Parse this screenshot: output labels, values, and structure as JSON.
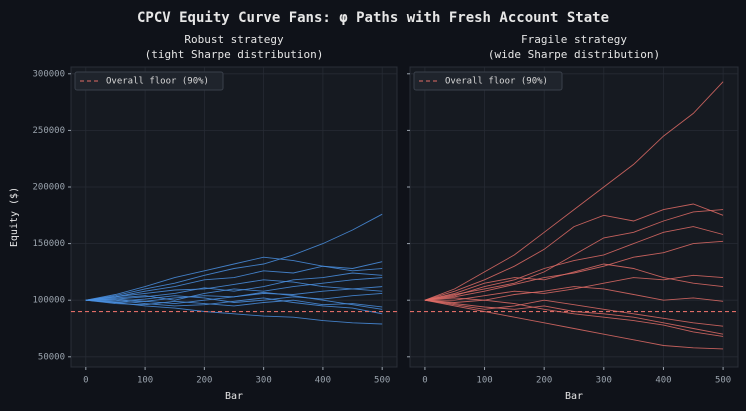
{
  "title": "CPCV Equity Curve Fans: φ Paths with Fresh Account State",
  "chart_data": [
    {
      "type": "line",
      "title": "Robust strategy",
      "subtitle": "(tight Sharpe distribution)",
      "xlabel": "Bar",
      "ylabel": "Equity ($)",
      "xlim": [
        -25,
        525
      ],
      "xticks": [
        0,
        100,
        200,
        300,
        400,
        500
      ],
      "ylim": [
        41000,
        306000
      ],
      "yticks": [
        50000,
        100000,
        150000,
        200000,
        250000,
        300000
      ],
      "grid": true,
      "legend": "upper left",
      "floor": {
        "name": "Overall floor (90%)",
        "value": 90000,
        "color": "#e06c66"
      },
      "x": [
        0,
        50,
        100,
        150,
        200,
        250,
        300,
        350,
        400,
        450,
        500
      ],
      "series": [
        {
          "color": "#4a90e2",
          "values": [
            100000,
            104000,
            110000,
            115000,
            122000,
            128000,
            132000,
            140000,
            150000,
            162000,
            176000
          ]
        },
        {
          "color": "#4a90e2",
          "values": [
            100000,
            98000,
            95000,
            93000,
            90000,
            88000,
            86000,
            85000,
            82000,
            80000,
            79000
          ]
        },
        {
          "color": "#4a90e2",
          "values": [
            100000,
            103000,
            108000,
            112000,
            118000,
            120000,
            126000,
            124000,
            130000,
            128000,
            134000
          ]
        },
        {
          "color": "#4a90e2",
          "values": [
            100000,
            101000,
            99000,
            102000,
            104000,
            103000,
            106000,
            105000,
            108000,
            110000,
            112000
          ]
        },
        {
          "color": "#4a90e2",
          "values": [
            100000,
            97000,
            96000,
            99000,
            97000,
            95000,
            98000,
            100000,
            96000,
            97000,
            94000
          ]
        },
        {
          "color": "#4a90e2",
          "values": [
            100000,
            105000,
            112000,
            120000,
            126000,
            132000,
            138000,
            135000,
            130000,
            126000,
            128000
          ]
        },
        {
          "color": "#4a90e2",
          "values": [
            100000,
            102000,
            104000,
            100000,
            106000,
            110000,
            108000,
            112000,
            115000,
            118000,
            120000
          ]
        },
        {
          "color": "#4a90e2",
          "values": [
            100000,
            99000,
            101000,
            104000,
            102000,
            98000,
            100000,
            103000,
            101000,
            104000,
            106000
          ]
        },
        {
          "color": "#4a90e2",
          "values": [
            100000,
            103000,
            106000,
            109000,
            110000,
            114000,
            118000,
            116000,
            112000,
            110000,
            108000
          ]
        },
        {
          "color": "#4a90e2",
          "values": [
            100000,
            98000,
            99000,
            97000,
            100000,
            103000,
            107000,
            104000,
            100000,
            96000,
            92000
          ]
        },
        {
          "color": "#4a90e2",
          "values": [
            100000,
            101000,
            103000,
            106000,
            111000,
            108000,
            112000,
            118000,
            120000,
            124000,
            122000
          ]
        },
        {
          "color": "#4a90e2",
          "values": [
            100000,
            100000,
            97000,
            95000,
            96000,
            99000,
            102000,
            98000,
            95000,
            93000,
            88000
          ]
        }
      ]
    },
    {
      "type": "line",
      "title": "Fragile strategy",
      "subtitle": "(wide Sharpe distribution)",
      "xlabel": "Bar",
      "xlim": [
        -25,
        525
      ],
      "xticks": [
        0,
        100,
        200,
        300,
        400,
        500
      ],
      "ylim": [
        41000,
        306000
      ],
      "yticks": [
        50000,
        100000,
        150000,
        200000,
        250000,
        300000
      ],
      "grid": true,
      "legend": "upper left",
      "floor": {
        "name": "Overall floor (90%)",
        "value": 90000,
        "color": "#e06c66"
      },
      "x": [
        0,
        50,
        100,
        150,
        200,
        250,
        300,
        350,
        400,
        450,
        500
      ],
      "series": [
        {
          "color": "#e06c66",
          "values": [
            100000,
            110000,
            125000,
            140000,
            160000,
            180000,
            200000,
            220000,
            245000,
            265000,
            293000
          ]
        },
        {
          "color": "#e06c66",
          "values": [
            100000,
            108000,
            118000,
            130000,
            145000,
            165000,
            175000,
            170000,
            180000,
            185000,
            175000
          ]
        },
        {
          "color": "#e06c66",
          "values": [
            100000,
            95000,
            90000,
            85000,
            80000,
            75000,
            70000,
            65000,
            60000,
            58000,
            57000
          ]
        },
        {
          "color": "#e06c66",
          "values": [
            100000,
            104000,
            112000,
            118000,
            128000,
            135000,
            140000,
            150000,
            160000,
            165000,
            158000
          ]
        },
        {
          "color": "#e06c66",
          "values": [
            100000,
            97000,
            94000,
            92000,
            95000,
            90000,
            88000,
            85000,
            80000,
            75000,
            70000
          ]
        },
        {
          "color": "#e06c66",
          "values": [
            100000,
            106000,
            115000,
            120000,
            118000,
            125000,
            132000,
            128000,
            120000,
            115000,
            112000
          ]
        },
        {
          "color": "#e06c66",
          "values": [
            100000,
            102000,
            100000,
            105000,
            108000,
            112000,
            110000,
            105000,
            100000,
            102000,
            99000
          ]
        },
        {
          "color": "#e06c66",
          "values": [
            100000,
            98000,
            100000,
            97000,
            92000,
            88000,
            85000,
            82000,
            78000,
            72000,
            68000
          ]
        },
        {
          "color": "#e06c66",
          "values": [
            100000,
            105000,
            110000,
            115000,
            125000,
            140000,
            155000,
            160000,
            170000,
            178000,
            180000
          ]
        },
        {
          "color": "#e06c66",
          "values": [
            100000,
            100000,
            104000,
            108000,
            106000,
            110000,
            115000,
            120000,
            118000,
            122000,
            120000
          ]
        },
        {
          "color": "#e06c66",
          "values": [
            100000,
            96000,
            92000,
            95000,
            100000,
            96000,
            92000,
            88000,
            84000,
            80000,
            77000
          ]
        },
        {
          "color": "#e06c66",
          "values": [
            100000,
            103000,
            108000,
            114000,
            120000,
            124000,
            130000,
            138000,
            142000,
            150000,
            152000
          ]
        }
      ]
    }
  ]
}
